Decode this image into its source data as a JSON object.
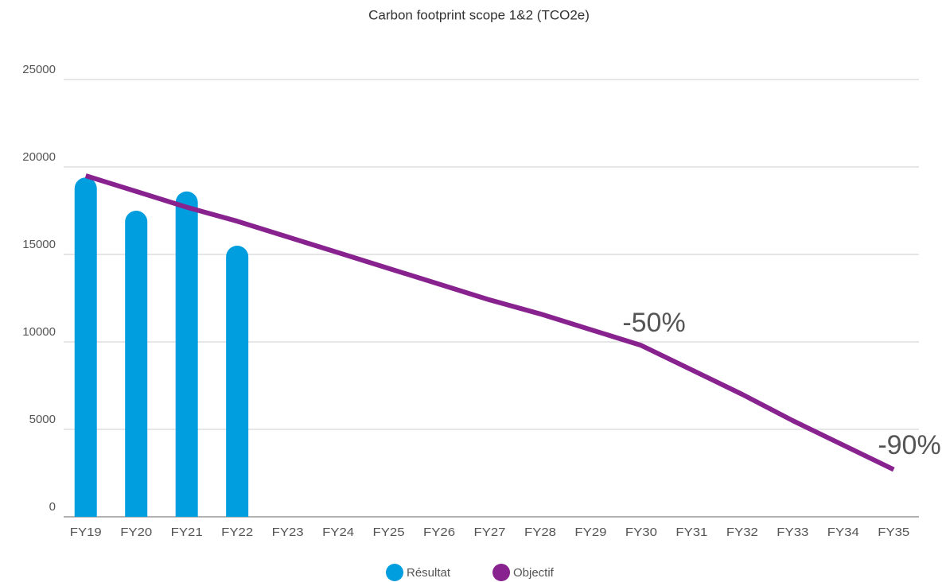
{
  "chart_data": {
    "type": "bar_line",
    "title": "Carbon footprint scope 1&2 (TCO2e)",
    "categories": [
      "FY19",
      "FY20",
      "FY21",
      "FY22",
      "FY23",
      "FY24",
      "FY25",
      "FY26",
      "FY27",
      "FY28",
      "FY29",
      "FY30",
      "FY31",
      "FY32",
      "FY33",
      "FY34",
      "FY35"
    ],
    "series": [
      {
        "name": "Résultat",
        "color": "#009ddf",
        "type": "bar",
        "values": [
          19400,
          17500,
          18600,
          15500,
          null,
          null,
          null,
          null,
          null,
          null,
          null,
          null,
          null,
          null,
          null,
          null,
          null
        ]
      },
      {
        "name": "Objectif",
        "color": "#87228f",
        "type": "line",
        "values": [
          19500,
          18600,
          17700,
          16900,
          16000,
          15100,
          14200,
          13300,
          12400,
          11600,
          10700,
          9800,
          8400,
          7000,
          5500,
          4100,
          2700
        ]
      }
    ],
    "annotations": [
      "-50%",
      "-90%"
    ],
    "ylim": [
      0,
      25000
    ],
    "yticks": [
      0,
      5000,
      10000,
      15000,
      20000,
      25000
    ],
    "grid": true
  }
}
